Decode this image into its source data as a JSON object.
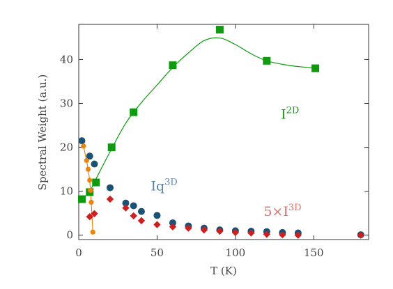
{
  "chart_data": {
    "type": "scatter",
    "xlabel": "T (K)",
    "ylabel": "Spectral Weight (a.u.)",
    "xlim": [
      0,
      185
    ],
    "ylim": [
      -1,
      48
    ],
    "xticks": [
      0,
      50,
      100,
      150
    ],
    "yticks": [
      0,
      10,
      20,
      30,
      40
    ],
    "grid": false,
    "colors": {
      "I2D": "#0f9a10",
      "Iq3D": "#1a5276",
      "five_I3D": "#cc1f1f",
      "orange": "#e8850a"
    },
    "series": [
      {
        "key": "I2D",
        "marker": "square",
        "points": [
          [
            2,
            8.2
          ],
          [
            7,
            9.8
          ],
          [
            11,
            12
          ],
          [
            21,
            20
          ],
          [
            35,
            28
          ],
          [
            60,
            38.7
          ],
          [
            90,
            46.8
          ],
          [
            120,
            39.7
          ],
          [
            151,
            38
          ]
        ]
      },
      {
        "key": "I2D_fit",
        "marker": "curve",
        "points": [
          [
            7,
            9.8
          ],
          [
            12,
            13.5
          ],
          [
            20,
            19
          ],
          [
            30,
            25.5
          ],
          [
            40,
            30.2
          ],
          [
            50,
            34.2
          ],
          [
            60,
            38.2
          ],
          [
            70,
            41.5
          ],
          [
            80,
            44.3
          ],
          [
            90,
            44.9
          ],
          [
            100,
            43.4
          ],
          [
            110,
            41.3
          ],
          [
            120,
            39.7
          ],
          [
            130,
            38.9
          ],
          [
            140,
            38.4
          ],
          [
            151,
            38.1
          ]
        ]
      },
      {
        "key": "Iq3D",
        "marker": "circle",
        "points": [
          [
            2,
            21.5
          ],
          [
            7,
            18
          ],
          [
            10,
            16.2
          ],
          [
            20,
            10.8
          ],
          [
            30,
            7.3
          ],
          [
            35,
            6.7
          ],
          [
            40,
            5.4
          ],
          [
            50,
            4.5
          ],
          [
            60,
            2.8
          ],
          [
            70,
            2.1
          ],
          [
            80,
            1.6
          ],
          [
            90,
            1.2
          ],
          [
            100,
            1
          ],
          [
            110,
            0.9
          ],
          [
            120,
            0.8
          ],
          [
            130,
            0.6
          ],
          [
            140,
            0.5
          ],
          [
            180,
            0.1
          ]
        ]
      },
      {
        "key": "five_I3D",
        "marker": "diamond",
        "points": [
          [
            7,
            4.2
          ],
          [
            10,
            4.9
          ],
          [
            20,
            8.2
          ],
          [
            30,
            6.2
          ],
          [
            35,
            4.4
          ],
          [
            40,
            3.3
          ],
          [
            50,
            2.4
          ],
          [
            60,
            1.9
          ],
          [
            70,
            1.6
          ],
          [
            80,
            1.2
          ],
          [
            90,
            0.9
          ],
          [
            100,
            0.6
          ],
          [
            110,
            0.5
          ],
          [
            120,
            0.2
          ],
          [
            130,
            0.1
          ],
          [
            140,
            0
          ],
          [
            180,
            0
          ]
        ]
      },
      {
        "key": "orange",
        "marker": "small-circle-line",
        "points": [
          [
            3,
            20.3
          ],
          [
            5,
            17
          ],
          [
            6,
            15
          ],
          [
            7,
            12.5
          ],
          [
            7.5,
            10.2
          ],
          [
            8,
            7.5
          ],
          [
            9,
            0.7
          ]
        ]
      }
    ],
    "annotations": [
      {
        "base": "I",
        "sup": "2D",
        "color": "#0f9a10",
        "x": 129,
        "y": 26.5
      },
      {
        "base": "Iq",
        "sup": "3D",
        "color": "#5b83a6",
        "x": 46,
        "y": 10.2
      },
      {
        "base": "5×I",
        "sup": "3D",
        "color": "#e0706a",
        "x": 118,
        "y": 4.4
      }
    ]
  }
}
